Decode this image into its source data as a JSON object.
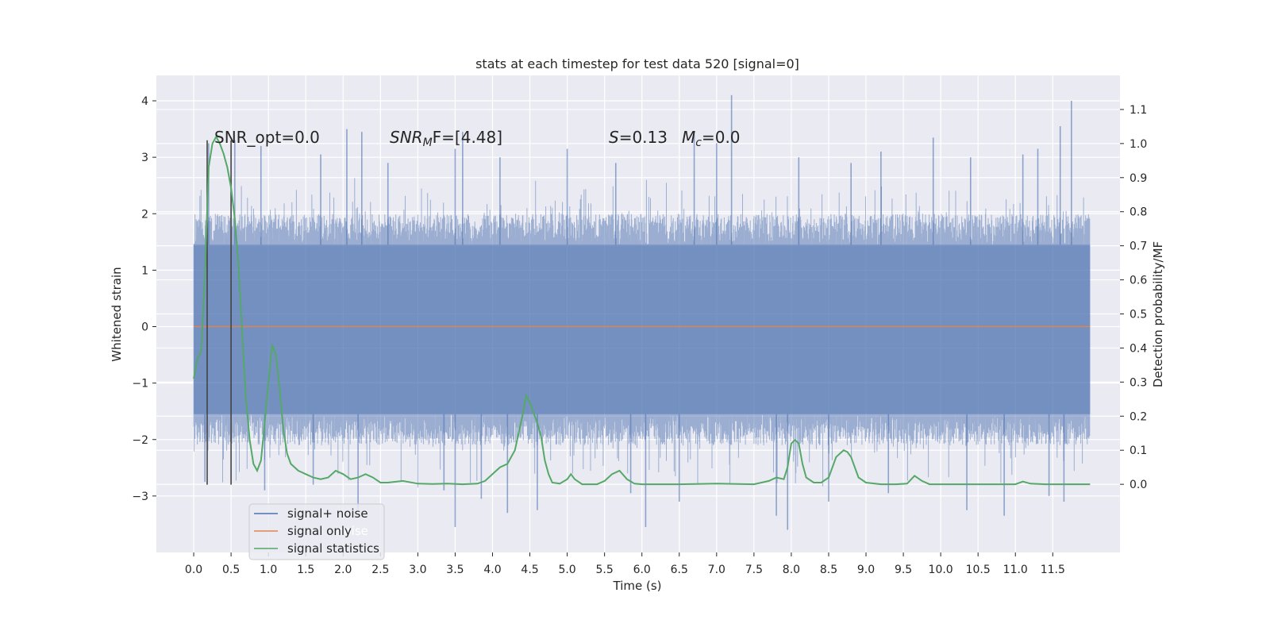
{
  "chart_data": {
    "type": "line",
    "title": "stats at each timestep for test data 520 [signal=0]",
    "xlabel": "Time (s)",
    "ylabel": "Whitened strain",
    "y2label": "Detection probability/MF",
    "xlim": [
      -0.5,
      12.4
    ],
    "ylim": [
      -4.0,
      4.45
    ],
    "y2lim": [
      -0.2,
      1.2
    ],
    "x_ticks": [
      "0.0",
      "0.5",
      "1.0",
      "1.5",
      "2.0",
      "2.5",
      "3.0",
      "3.5",
      "4.0",
      "4.5",
      "5.0",
      "5.5",
      "6.0",
      "6.5",
      "7.0",
      "7.5",
      "8.0",
      "8.5",
      "9.0",
      "9.5",
      "10.0",
      "10.5",
      "11.0",
      "11.5"
    ],
    "y_ticks": [
      "−3",
      "−2",
      "−1",
      "0",
      "1",
      "2",
      "3",
      "4"
    ],
    "y2_ticks": [
      "0.0",
      "0.1",
      "0.2",
      "0.3",
      "0.4",
      "0.5",
      "0.6",
      "0.7",
      "0.8",
      "0.9",
      "1.0",
      "1.1"
    ],
    "annotations": {
      "snr_opt": "SNR_opt=0.0",
      "snr_mf_name": "SNR",
      "snr_mf_sub": "M",
      "snr_mf_rest": "F=[4.48]",
      "s_name": "S",
      "s_rest": "=0.13",
      "mc_name": "M",
      "mc_sub": "c",
      "mc_rest": "=0.0"
    },
    "legend": {
      "placement": "lower-left",
      "entries": [
        {
          "label": "signal+ noise",
          "color": "#4c72b0"
        },
        {
          "label": "signal only",
          "color": "#dd8452"
        },
        {
          "label": "signal statistics",
          "color": "#55a868"
        }
      ],
      "ghost_text": "noise"
    },
    "grid": true,
    "series": [
      {
        "name": "signal+ noise",
        "axis": "left",
        "style": "dense noise band",
        "x_range": [
          0.0,
          12.0
        ],
        "typical_range": [
          -1.55,
          1.45
        ],
        "color": "#4c72b0",
        "spikes": [
          {
            "x": 0.2,
            "y": 3.25
          },
          {
            "x": 0.55,
            "y": 3.3
          },
          {
            "x": 0.9,
            "y": 3.2
          },
          {
            "x": 1.7,
            "y": 3.05
          },
          {
            "x": 2.05,
            "y": 3.5
          },
          {
            "x": 2.25,
            "y": 3.45
          },
          {
            "x": 2.6,
            "y": 2.9
          },
          {
            "x": 3.5,
            "y": 3.15
          },
          {
            "x": 3.6,
            "y": 3.45
          },
          {
            "x": 4.1,
            "y": 3.0
          },
          {
            "x": 5.0,
            "y": 3.15
          },
          {
            "x": 5.65,
            "y": 2.9
          },
          {
            "x": 6.7,
            "y": 3.4
          },
          {
            "x": 7.0,
            "y": 3.25
          },
          {
            "x": 7.2,
            "y": 4.1
          },
          {
            "x": 8.1,
            "y": 3.0
          },
          {
            "x": 8.8,
            "y": 2.9
          },
          {
            "x": 9.2,
            "y": 3.1
          },
          {
            "x": 9.9,
            "y": 3.35
          },
          {
            "x": 10.4,
            "y": 3.0
          },
          {
            "x": 11.1,
            "y": 3.05
          },
          {
            "x": 11.3,
            "y": 3.15
          },
          {
            "x": 11.6,
            "y": 3.55
          },
          {
            "x": 11.75,
            "y": 4.0
          },
          {
            "x": 0.15,
            "y": -2.75
          },
          {
            "x": 0.95,
            "y": -2.9
          },
          {
            "x": 1.6,
            "y": -2.8
          },
          {
            "x": 2.2,
            "y": -3.25
          },
          {
            "x": 3.35,
            "y": -2.9
          },
          {
            "x": 3.5,
            "y": -3.55
          },
          {
            "x": 3.85,
            "y": -3.05
          },
          {
            "x": 4.2,
            "y": -3.3
          },
          {
            "x": 4.6,
            "y": -3.25
          },
          {
            "x": 5.85,
            "y": -2.95
          },
          {
            "x": 6.05,
            "y": -3.55
          },
          {
            "x": 6.5,
            "y": -3.1
          },
          {
            "x": 7.8,
            "y": -3.35
          },
          {
            "x": 7.95,
            "y": -3.6
          },
          {
            "x": 8.5,
            "y": -3.1
          },
          {
            "x": 9.3,
            "y": -2.95
          },
          {
            "x": 10.35,
            "y": -3.25
          },
          {
            "x": 10.85,
            "y": -3.35
          },
          {
            "x": 11.45,
            "y": -3.0
          },
          {
            "x": 11.65,
            "y": -3.1
          }
        ]
      },
      {
        "name": "signal only",
        "axis": "left",
        "color": "#dd8452",
        "x": [
          0.0,
          12.0
        ],
        "y": [
          0.0,
          0.0
        ]
      },
      {
        "name": "signal statistics",
        "axis": "right",
        "color": "#55a868",
        "x": [
          0.0,
          0.05,
          0.1,
          0.15,
          0.2,
          0.25,
          0.3,
          0.35,
          0.4,
          0.45,
          0.5,
          0.55,
          0.6,
          0.65,
          0.7,
          0.75,
          0.8,
          0.85,
          0.9,
          0.95,
          1.0,
          1.05,
          1.1,
          1.15,
          1.2,
          1.25,
          1.3,
          1.4,
          1.5,
          1.6,
          1.7,
          1.8,
          1.9,
          2.0,
          2.1,
          2.2,
          2.3,
          2.4,
          2.5,
          2.6,
          2.8,
          3.0,
          3.2,
          3.4,
          3.6,
          3.8,
          3.9,
          4.0,
          4.1,
          4.2,
          4.3,
          4.35,
          4.4,
          4.45,
          4.5,
          4.55,
          4.6,
          4.65,
          4.7,
          4.75,
          4.8,
          4.9,
          5.0,
          5.05,
          5.1,
          5.2,
          5.3,
          5.4,
          5.5,
          5.6,
          5.7,
          5.8,
          5.9,
          6.0,
          6.2,
          6.5,
          7.0,
          7.5,
          7.7,
          7.8,
          7.9,
          7.95,
          8.0,
          8.05,
          8.1,
          8.15,
          8.2,
          8.3,
          8.4,
          8.5,
          8.6,
          8.65,
          8.7,
          8.75,
          8.8,
          8.85,
          8.9,
          9.0,
          9.2,
          9.4,
          9.55,
          9.65,
          9.75,
          9.85,
          10.0,
          10.5,
          11.0,
          11.1,
          11.2,
          11.4,
          12.0
        ],
        "y": [
          0.31,
          0.37,
          0.39,
          0.62,
          0.93,
          1.0,
          1.02,
          1.0,
          0.97,
          0.93,
          0.87,
          0.78,
          0.64,
          0.44,
          0.25,
          0.13,
          0.06,
          0.04,
          0.07,
          0.18,
          0.3,
          0.41,
          0.38,
          0.28,
          0.16,
          0.09,
          0.06,
          0.04,
          0.03,
          0.02,
          0.015,
          0.02,
          0.04,
          0.03,
          0.015,
          0.02,
          0.03,
          0.02,
          0.005,
          0.005,
          0.01,
          0.002,
          0.001,
          0.002,
          0.0,
          0.002,
          0.01,
          0.03,
          0.05,
          0.06,
          0.1,
          0.15,
          0.2,
          0.26,
          0.24,
          0.21,
          0.18,
          0.14,
          0.07,
          0.03,
          0.005,
          0.002,
          0.015,
          0.03,
          0.015,
          0.0,
          0.0,
          0.0,
          0.01,
          0.03,
          0.04,
          0.015,
          0.002,
          0.0,
          0.0,
          0.0,
          0.002,
          0.0,
          0.01,
          0.02,
          0.015,
          0.05,
          0.12,
          0.13,
          0.12,
          0.06,
          0.02,
          0.005,
          0.005,
          0.02,
          0.08,
          0.09,
          0.1,
          0.095,
          0.08,
          0.05,
          0.02,
          0.005,
          0.0,
          0.0,
          0.002,
          0.025,
          0.01,
          0.0,
          0.0,
          0.0,
          0.0,
          0.008,
          0.002,
          0.0,
          0.0
        ]
      }
    ],
    "vertical_markers": [
      {
        "x": 0.18,
        "y_top": 3.3,
        "y_bottom": -2.8,
        "color": "#444444"
      },
      {
        "x": 0.5,
        "y_top": 3.3,
        "y_bottom": -2.8,
        "color": "#444444"
      }
    ]
  }
}
